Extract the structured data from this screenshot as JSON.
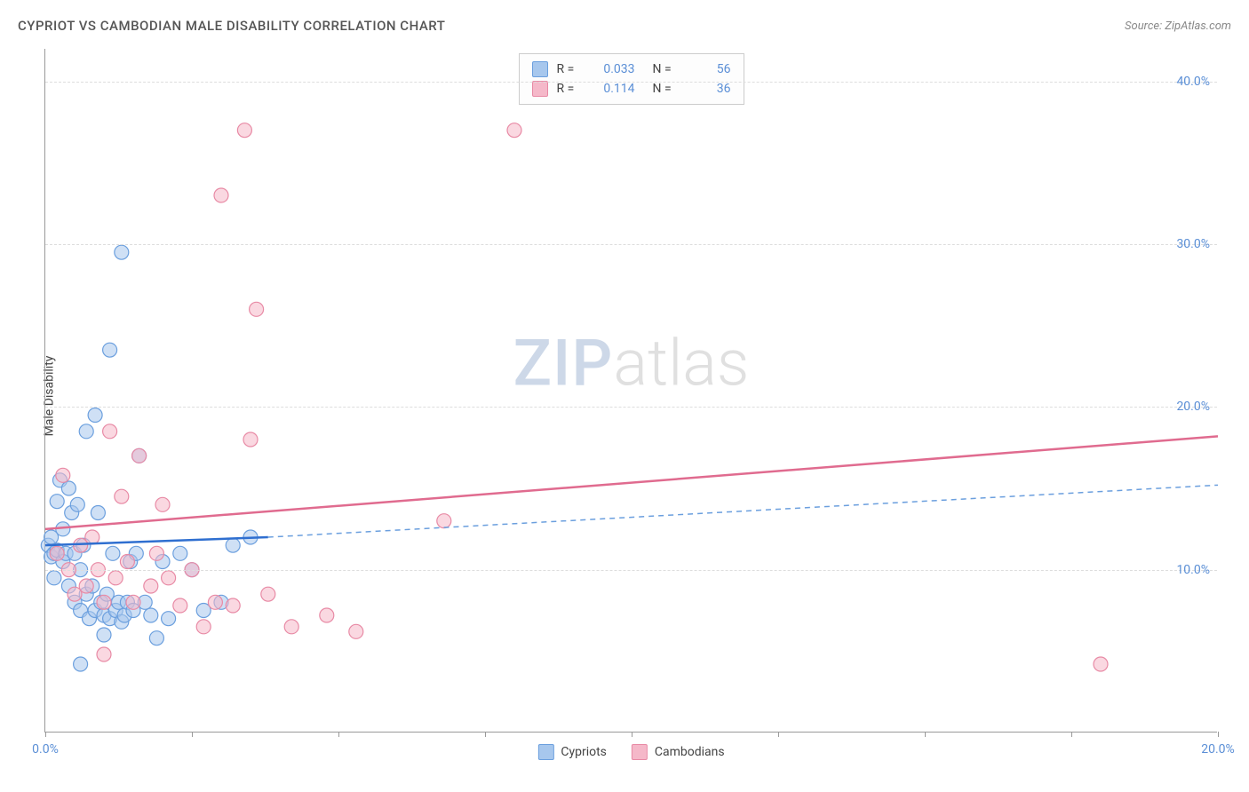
{
  "title": "CYPRIOT VS CAMBODIAN MALE DISABILITY CORRELATION CHART",
  "source": "Source: ZipAtlas.com",
  "ylabel": "Male Disability",
  "watermark": {
    "part1": "ZIP",
    "part2": "atlas"
  },
  "chart": {
    "type": "scatter",
    "xlim": [
      0,
      20
    ],
    "ylim": [
      0,
      42
    ],
    "x_ticks": [
      0,
      2.5,
      5,
      7.5,
      10,
      12.5,
      15,
      17.5,
      20
    ],
    "x_tick_labels_shown": {
      "0": "0.0%",
      "20": "20.0%"
    },
    "y_gridlines": [
      10,
      20,
      30,
      40
    ],
    "y_tick_labels": {
      "10": "10.0%",
      "20": "20.0%",
      "30": "30.0%",
      "40": "40.0%"
    },
    "grid_color": "#dddddd",
    "axis_color": "#999999",
    "tick_label_color": "#5b8fd6",
    "background_color": "#ffffff",
    "marker_radius": 8,
    "marker_stroke_width": 1.2,
    "series": [
      {
        "name": "Cypriots",
        "fill": "#a7c7ed",
        "stroke": "#6b9fde",
        "fill_opacity": 0.55,
        "R": "0.033",
        "N": "56",
        "trend": {
          "solid": {
            "x1": 0,
            "y1": 11.5,
            "x2": 3.8,
            "y2": 12.0,
            "color": "#2f6fd0",
            "width": 2.5
          },
          "dashed": {
            "x1": 3.8,
            "y1": 12.0,
            "x2": 20,
            "y2": 15.2,
            "color": "#6b9fde",
            "width": 1.5,
            "dash": "6,5"
          }
        },
        "points": [
          [
            0.05,
            11.5
          ],
          [
            0.1,
            10.8
          ],
          [
            0.1,
            12.0
          ],
          [
            0.15,
            11.0
          ],
          [
            0.15,
            9.5
          ],
          [
            0.2,
            11.2
          ],
          [
            0.2,
            14.2
          ],
          [
            0.25,
            15.5
          ],
          [
            0.3,
            10.5
          ],
          [
            0.3,
            12.5
          ],
          [
            0.35,
            11.0
          ],
          [
            0.4,
            15.0
          ],
          [
            0.4,
            9.0
          ],
          [
            0.45,
            13.5
          ],
          [
            0.5,
            11.0
          ],
          [
            0.5,
            8.0
          ],
          [
            0.55,
            14.0
          ],
          [
            0.6,
            7.5
          ],
          [
            0.6,
            10.0
          ],
          [
            0.65,
            11.5
          ],
          [
            0.7,
            18.5
          ],
          [
            0.7,
            8.5
          ],
          [
            0.75,
            7.0
          ],
          [
            0.8,
            9.0
          ],
          [
            0.85,
            19.5
          ],
          [
            0.85,
            7.5
          ],
          [
            0.9,
            13.5
          ],
          [
            0.95,
            8.0
          ],
          [
            1.0,
            6.0
          ],
          [
            1.0,
            7.2
          ],
          [
            1.05,
            8.5
          ],
          [
            1.1,
            7.0
          ],
          [
            1.1,
            23.5
          ],
          [
            1.15,
            11.0
          ],
          [
            1.2,
            7.5
          ],
          [
            1.25,
            8.0
          ],
          [
            1.3,
            6.8
          ],
          [
            1.3,
            29.5
          ],
          [
            1.35,
            7.2
          ],
          [
            1.4,
            8.0
          ],
          [
            1.45,
            10.5
          ],
          [
            1.5,
            7.5
          ],
          [
            1.55,
            11.0
          ],
          [
            1.6,
            17.0
          ],
          [
            1.7,
            8.0
          ],
          [
            1.8,
            7.2
          ],
          [
            1.9,
            5.8
          ],
          [
            2.0,
            10.5
          ],
          [
            2.1,
            7.0
          ],
          [
            2.3,
            11.0
          ],
          [
            2.5,
            10.0
          ],
          [
            2.7,
            7.5
          ],
          [
            3.0,
            8.0
          ],
          [
            3.2,
            11.5
          ],
          [
            3.5,
            12.0
          ],
          [
            0.6,
            4.2
          ]
        ]
      },
      {
        "name": "Cambodians",
        "fill": "#f5b8c9",
        "stroke": "#e88aa5",
        "fill_opacity": 0.55,
        "R": "0.114",
        "N": "36",
        "trend": {
          "solid": {
            "x1": 0,
            "y1": 12.5,
            "x2": 20,
            "y2": 18.2,
            "color": "#e06b8f",
            "width": 2.5
          }
        },
        "points": [
          [
            0.2,
            11.0
          ],
          [
            0.4,
            10.0
          ],
          [
            0.5,
            8.5
          ],
          [
            0.6,
            11.5
          ],
          [
            0.7,
            9.0
          ],
          [
            0.8,
            12.0
          ],
          [
            0.9,
            10.0
          ],
          [
            1.0,
            8.0
          ],
          [
            1.1,
            18.5
          ],
          [
            1.2,
            9.5
          ],
          [
            1.3,
            14.5
          ],
          [
            1.4,
            10.5
          ],
          [
            1.5,
            8.0
          ],
          [
            1.6,
            17.0
          ],
          [
            1.8,
            9.0
          ],
          [
            1.9,
            11.0
          ],
          [
            2.0,
            14.0
          ],
          [
            2.1,
            9.5
          ],
          [
            2.3,
            7.8
          ],
          [
            2.5,
            10.0
          ],
          [
            2.7,
            6.5
          ],
          [
            2.9,
            8.0
          ],
          [
            3.0,
            33.0
          ],
          [
            3.2,
            7.8
          ],
          [
            3.4,
            37.0
          ],
          [
            3.5,
            18.0
          ],
          [
            3.6,
            26.0
          ],
          [
            3.8,
            8.5
          ],
          [
            4.2,
            6.5
          ],
          [
            4.8,
            7.2
          ],
          [
            5.3,
            6.2
          ],
          [
            6.8,
            13.0
          ],
          [
            8.0,
            37.0
          ],
          [
            1.0,
            4.8
          ],
          [
            18.0,
            4.2
          ],
          [
            0.3,
            15.8
          ]
        ]
      }
    ]
  },
  "legend_top": [
    {
      "swatch_fill": "#a7c7ed",
      "swatch_stroke": "#6b9fde",
      "r_label": "R =",
      "r_val": "0.033",
      "n_label": "N =",
      "n_val": "56"
    },
    {
      "swatch_fill": "#f5b8c9",
      "swatch_stroke": "#e88aa5",
      "r_label": "R =",
      "r_val": "0.114",
      "n_label": "N =",
      "n_val": "36"
    }
  ],
  "legend_bottom": [
    {
      "swatch_fill": "#a7c7ed",
      "swatch_stroke": "#6b9fde",
      "label": "Cypriots"
    },
    {
      "swatch_fill": "#f5b8c9",
      "swatch_stroke": "#e88aa5",
      "label": "Cambodians"
    }
  ]
}
